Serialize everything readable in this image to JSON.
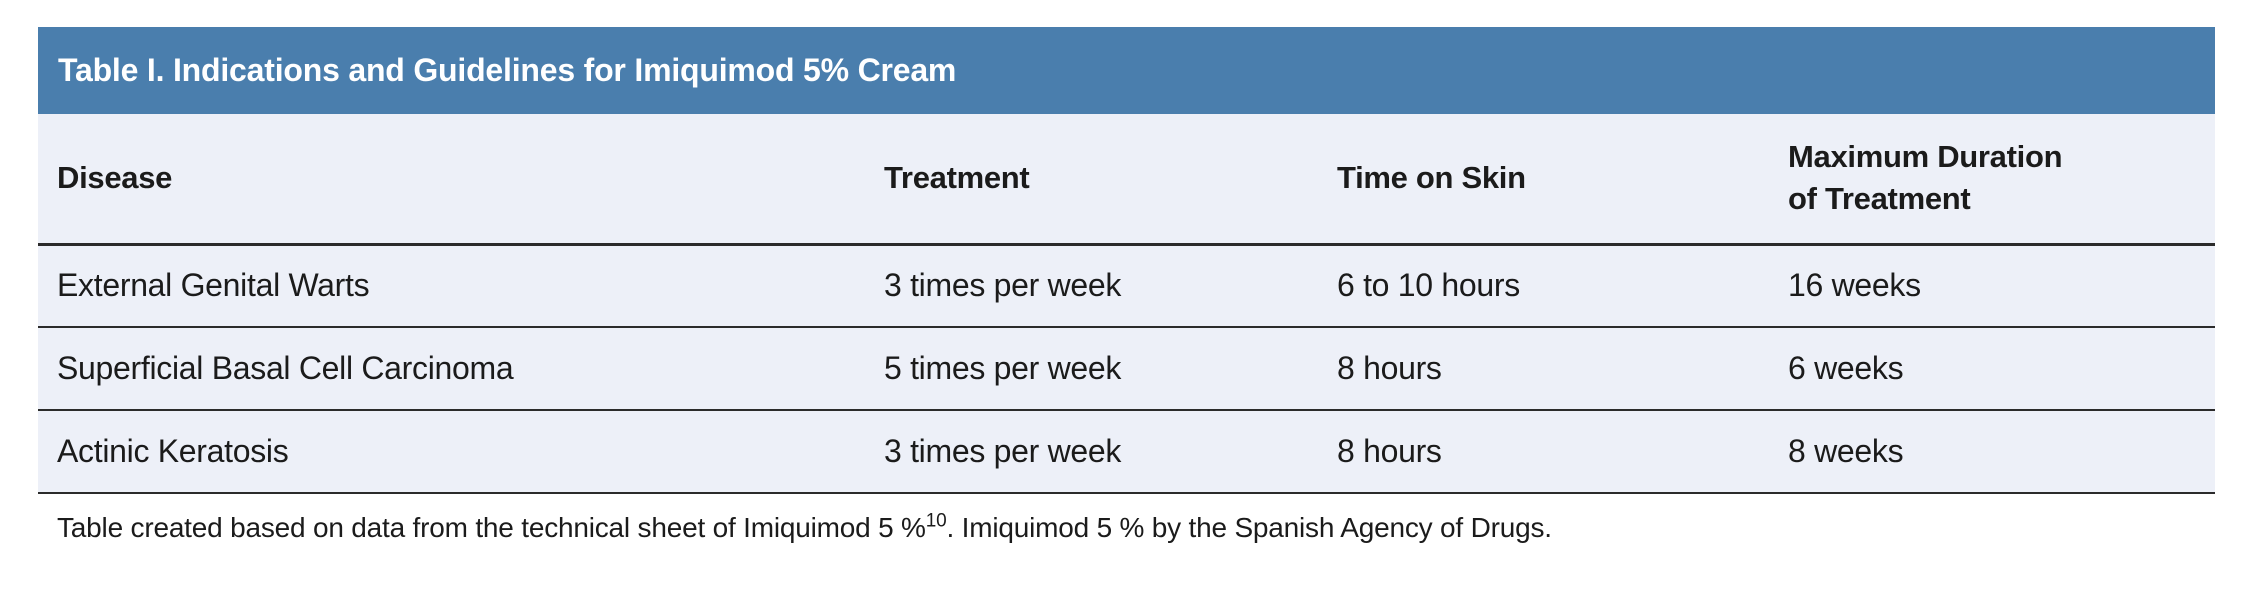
{
  "figure": {
    "title": "Table I. Indications and Guidelines for Imiquimod 5% Cream"
  },
  "colors": {
    "header_bg": "#4a7ead",
    "body_bg": "#edf0f8",
    "text": "#1b1b1b",
    "border": "#2b2b2b",
    "title_text": "#ffffff"
  },
  "chart_data": {
    "type": "table",
    "title": "Table I. Indications and Guidelines for Imiquimod 5% Cream",
    "headers": [
      "Disease",
      "Treatment",
      "Time on Skin",
      "Maximum Duration\nof Treatment"
    ],
    "rows": [
      [
        "External Genital Warts",
        "3 times per week",
        "6 to 10 hours",
        "16 weeks"
      ],
      [
        "Superficial Basal Cell Carcinoma",
        "5 times per week",
        "8 hours",
        "6 weeks"
      ],
      [
        "Actinic Keratosis",
        "3 times per week",
        "8 hours",
        "8 weeks"
      ]
    ]
  },
  "footnote": {
    "before_sup": "Table created based on data from the technical sheet of Imiquimod 5 %",
    "sup": "10",
    "after_sup": ". Imiquimod 5 % by the Spanish Agency of Drugs."
  }
}
